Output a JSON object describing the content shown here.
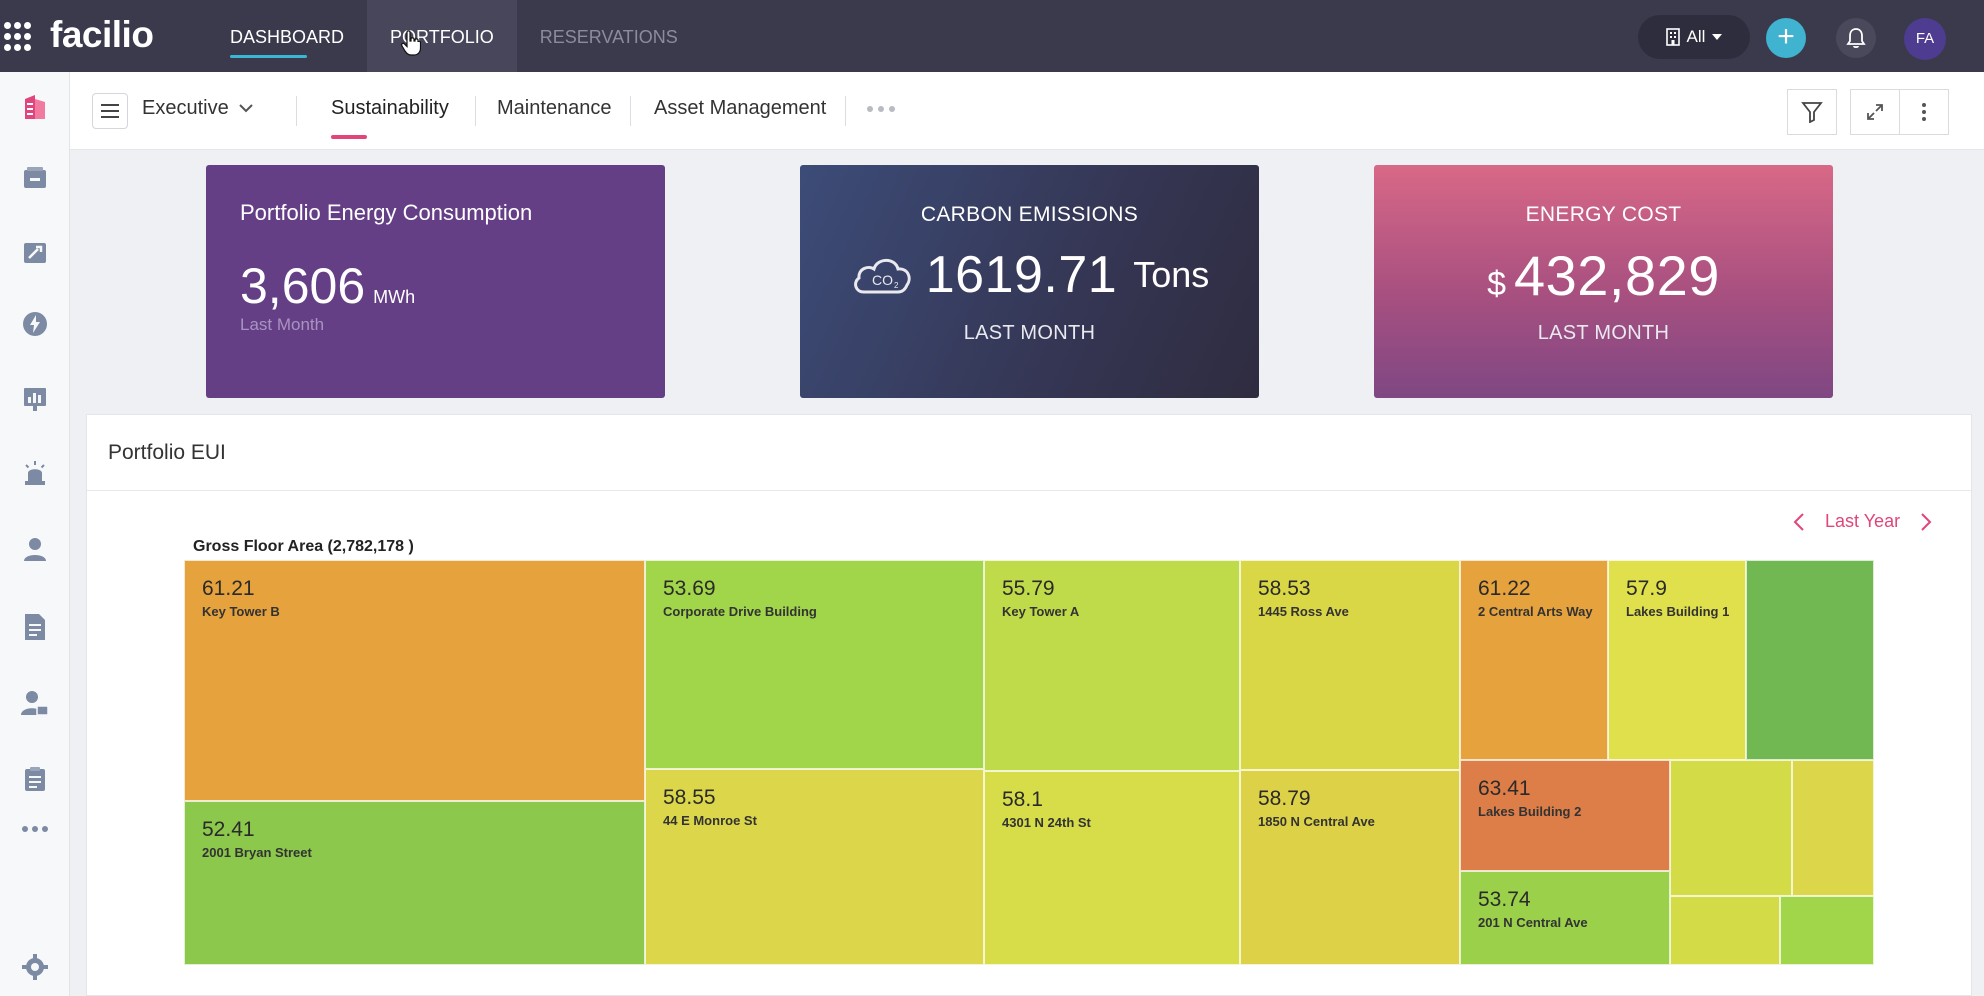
{
  "app": {
    "logo": "facilio"
  },
  "nav": {
    "tabs": [
      {
        "label": "DASHBOARD"
      },
      {
        "label": "PORTFOLIO"
      },
      {
        "label": "RESERVATIONS"
      }
    ],
    "site_filter": "All",
    "user_initials": "FA"
  },
  "subheader": {
    "folder": "Executive",
    "tabs": [
      {
        "label": "Sustainability"
      },
      {
        "label": "Maintenance"
      },
      {
        "label": "Asset Management"
      }
    ]
  },
  "cards": {
    "energy": {
      "title": "Portfolio Energy Consumption",
      "value": "3,606",
      "unit": "MWh",
      "period": "Last Month"
    },
    "carbon": {
      "title": "CARBON EMISSIONS",
      "value": "1619.71",
      "unit": "Tons",
      "period": "LAST MONTH"
    },
    "cost": {
      "title": "ENERGY COST",
      "currency": "$",
      "value": "432,829",
      "period": "LAST MONTH"
    }
  },
  "eui_panel": {
    "title": "Portfolio EUI",
    "period": "Last Year",
    "treemap_title": "Gross Floor Area (2,782,178 )"
  },
  "colors": {
    "orange": "#e6a23c",
    "green": "#8cc84b",
    "lime": "#a1d54a",
    "yellow_green": "#d3dc47",
    "yellow": "#dcd64a",
    "dark_orange": "#dd7e48",
    "dark_green": "#72b852"
  },
  "chart_data": {
    "type": "treemap",
    "title": "Gross Floor Area (2,782,178 )",
    "metric": "EUI",
    "items": [
      {
        "value": "61.21",
        "name": "Key Tower B",
        "color": "#e6a23c"
      },
      {
        "value": "52.41",
        "name": "2001 Bryan Street",
        "color": "#8cc84b"
      },
      {
        "value": "53.69",
        "name": "Corporate Drive Building",
        "color": "#a1d54a"
      },
      {
        "value": "58.55",
        "name": "44 E Monroe St",
        "color": "#dcd64a"
      },
      {
        "value": "55.79",
        "name": "Key Tower A",
        "color": "#c0db4a"
      },
      {
        "value": "58.1",
        "name": "4301 N 24th St",
        "color": "#d6dd48"
      },
      {
        "value": "58.53",
        "name": "1445 Ross Ave",
        "color": "#dad747"
      },
      {
        "value": "58.79",
        "name": "1850 N Central Ave",
        "color": "#ddd247"
      },
      {
        "value": "61.22",
        "name": "2 Central Arts Way",
        "color": "#e6a23c"
      },
      {
        "value": "57.9",
        "name": "Lakes Building 1",
        "color": "#dfe04c"
      },
      {
        "value": "63.41",
        "name": "Lakes Building 2",
        "color": "#dd7e48"
      },
      {
        "value": "53.74",
        "name": "201 N Central Ave",
        "color": "#9bd04a"
      }
    ]
  }
}
